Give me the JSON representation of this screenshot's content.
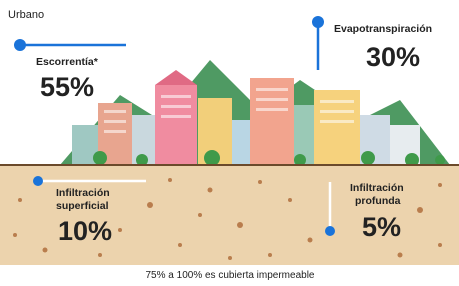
{
  "title": "Urbano",
  "flows": [
    {
      "label_lines": [
        "Escorrentía*"
      ],
      "value": "55%"
    },
    {
      "label_lines": [
        "Evapotranspiración"
      ],
      "value": "30%"
    },
    {
      "label_lines": [
        "Infiltración",
        "superficial"
      ],
      "value": "10%"
    },
    {
      "label_lines": [
        "Infiltración",
        "profunda"
      ],
      "value": "5%"
    }
  ],
  "footnote": "75% a 100% es cubierta impermeable"
}
